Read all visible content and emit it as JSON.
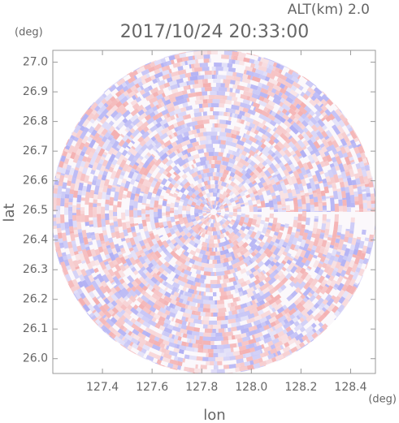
{
  "chart_data": {
    "type": "radar-ppi",
    "title": "2017/10/24 20:33:00",
    "subtitle": "ALT(km) 2.0",
    "x_label": "lon",
    "y_label": "lat",
    "x_unit": "(deg)",
    "y_unit": "(deg)",
    "xlim": [
      127.2,
      128.5
    ],
    "ylim": [
      25.95,
      27.04
    ],
    "xticks": [
      127.4,
      127.6,
      127.8,
      {
        "value": 128.0,
        "label": "128.0"
      },
      128.2,
      128.4
    ],
    "yticks": [
      {
        "value": 26.0,
        "label": "26.0"
      },
      26.1,
      26.2,
      26.3,
      26.4,
      26.5,
      26.6,
      26.7,
      26.8,
      26.9,
      {
        "value": 27.0,
        "label": "27.0"
      }
    ],
    "positive_color": "#f08080",
    "negative_color": "#8080f0"
  }
}
